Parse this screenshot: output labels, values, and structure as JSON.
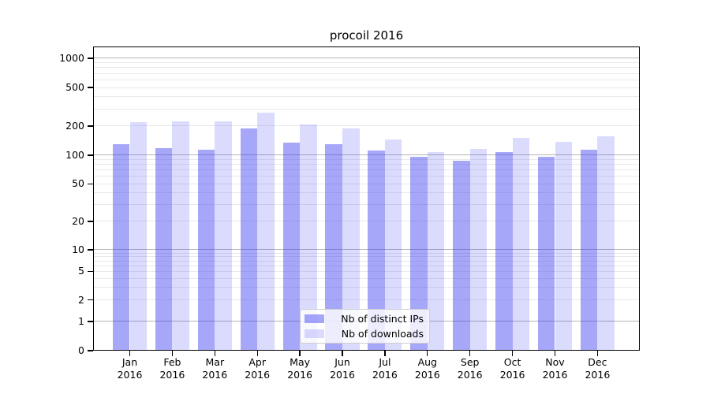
{
  "chart_data": {
    "type": "bar",
    "title": "procoil 2016",
    "categories": [
      "Jan",
      "Feb",
      "Mar",
      "Apr",
      "May",
      "Jun",
      "Jul",
      "Aug",
      "Sep",
      "Oct",
      "Nov",
      "Dec"
    ],
    "category_year": "2016",
    "series": [
      {
        "name": "Nb of distinct IPs",
        "values": [
          130,
          119,
          114,
          190,
          136,
          129,
          112,
          96,
          87,
          108,
          96,
          115
        ]
      },
      {
        "name": "Nb of downloads",
        "values": [
          218,
          222,
          225,
          275,
          207,
          190,
          145,
          107,
          116,
          152,
          137,
          158
        ]
      }
    ],
    "xlabel": "",
    "ylabel": "",
    "yscale": "log-with-zero",
    "yticks": [
      0,
      1,
      2,
      5,
      10,
      20,
      50,
      100,
      200,
      500,
      1000
    ],
    "ylim": [
      0,
      1320
    ],
    "grid": "on",
    "legend_position": "lower center",
    "colors": {
      "bar_base": "#3c3cf3",
      "bar_ips_alpha": 0.45,
      "bar_downloads_alpha": 0.185,
      "bar_ips_composited": "#a7a7f9",
      "bar_downloads_composited": "#dbdbfc",
      "grid_major": "#b4b4b4",
      "grid_minor": "#e9e9e9",
      "axis": "#000000"
    }
  }
}
